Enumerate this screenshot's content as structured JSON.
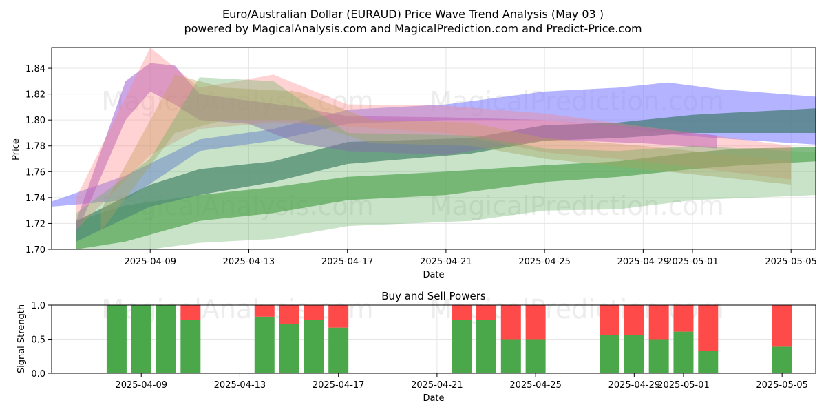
{
  "title_line1": "Euro/Australian Dollar (EURAUD) Price Wave Trend Analysis (May 03 )",
  "title_line2": "powered by MagicalAnalysis.com and MagicalPrediction.com and Predict-Price.com",
  "watermarks": [
    "MagicalAnalysis.com",
    "MagicalPrediction.com"
  ],
  "chart_data": [
    {
      "type": "area",
      "xlabel": "Date",
      "ylabel": "Price",
      "ylim": [
        1.7,
        1.856
      ],
      "xlim": [
        "2025-04-05",
        "2025-05-06"
      ],
      "grid": true,
      "x_ticks": [
        "2025-04-09",
        "2025-04-13",
        "2025-04-17",
        "2025-04-21",
        "2025-04-25",
        "2025-04-29",
        "2025-05-01",
        "2025-05-05"
      ],
      "y_ticks": [
        1.7,
        1.72,
        1.74,
        1.76,
        1.78,
        1.8,
        1.82,
        1.84
      ],
      "series": [
        {
          "color": "#8080ff",
          "alpha": 0.6,
          "x": [
            "2025-04-05",
            "2025-04-08",
            "2025-04-11",
            "2025-04-14",
            "2025-04-17",
            "2025-04-21",
            "2025-04-25",
            "2025-04-28",
            "2025-04-30",
            "2025-05-02",
            "2025-05-06"
          ],
          "upper": [
            1.737,
            1.757,
            1.785,
            1.793,
            1.808,
            1.812,
            1.822,
            1.825,
            1.829,
            1.824,
            1.818
          ],
          "lower": [
            1.733,
            1.738,
            1.776,
            1.784,
            1.797,
            1.8,
            1.8,
            1.795,
            1.789,
            1.786,
            1.781
          ]
        },
        {
          "color": "#2f8f2f",
          "alpha": 0.6,
          "x": [
            "2025-04-06",
            "2025-04-08",
            "2025-04-11",
            "2025-04-14",
            "2025-04-17",
            "2025-04-21",
            "2025-04-25",
            "2025-04-28",
            "2025-05-01",
            "2025-05-03",
            "2025-05-06"
          ],
          "upper": [
            1.722,
            1.734,
            1.742,
            1.748,
            1.756,
            1.76,
            1.765,
            1.768,
            1.775,
            1.778,
            1.779
          ],
          "lower": [
            1.7,
            1.706,
            1.722,
            1.728,
            1.738,
            1.742,
            1.752,
            1.756,
            1.762,
            1.765,
            1.768
          ]
        },
        {
          "color": "#4d8080",
          "alpha": 0.8,
          "x": [
            "2025-04-06",
            "2025-04-09",
            "2025-04-11",
            "2025-04-14",
            "2025-04-17",
            "2025-04-22",
            "2025-04-25",
            "2025-04-28",
            "2025-05-01",
            "2025-05-03",
            "2025-05-06"
          ],
          "upper": [
            1.722,
            1.75,
            1.762,
            1.768,
            1.783,
            1.786,
            1.796,
            1.798,
            1.804,
            1.806,
            1.809
          ],
          "lower": [
            1.706,
            1.733,
            1.742,
            1.752,
            1.766,
            1.774,
            1.784,
            1.786,
            1.79,
            1.79,
            1.79
          ]
        },
        {
          "color": "#9a4fcf",
          "alpha": 0.5,
          "x": [
            "2025-04-06",
            "2025-04-08",
            "2025-04-09",
            "2025-04-10",
            "2025-04-11",
            "2025-04-13",
            "2025-04-15",
            "2025-04-17",
            "2025-04-21",
            "2025-04-25",
            "2025-04-29",
            "2025-05-02"
          ],
          "upper": [
            1.722,
            1.83,
            1.844,
            1.842,
            1.82,
            1.815,
            1.81,
            1.803,
            1.802,
            1.8,
            1.794,
            1.788
          ],
          "lower": [
            1.712,
            1.8,
            1.822,
            1.812,
            1.8,
            1.797,
            1.782,
            1.776,
            1.773,
            1.785,
            1.782,
            1.778
          ]
        },
        {
          "color": "#ff8080",
          "alpha": 0.35,
          "x": [
            "2025-04-06",
            "2025-04-09",
            "2025-04-11",
            "2025-04-14",
            "2025-04-17",
            "2025-04-21",
            "2025-04-25",
            "2025-04-29",
            "2025-05-05"
          ],
          "upper": [
            1.74,
            1.856,
            1.825,
            1.835,
            1.812,
            1.811,
            1.805,
            1.795,
            1.78
          ],
          "lower": [
            1.715,
            1.773,
            1.793,
            1.798,
            1.795,
            1.79,
            1.775,
            1.768,
            1.754
          ]
        },
        {
          "color": "#c89a60",
          "alpha": 0.4,
          "x": [
            "2025-04-07",
            "2025-04-10",
            "2025-04-12",
            "2025-04-15",
            "2025-04-18",
            "2025-04-22",
            "2025-04-25",
            "2025-04-29",
            "2025-05-05"
          ],
          "upper": [
            1.73,
            1.835,
            1.825,
            1.822,
            1.8,
            1.798,
            1.786,
            1.78,
            1.768
          ],
          "lower": [
            1.714,
            1.79,
            1.8,
            1.8,
            1.782,
            1.78,
            1.77,
            1.762,
            1.75
          ]
        },
        {
          "color": "#60b060",
          "alpha": 0.35,
          "x": [
            "2025-04-06",
            "2025-04-09",
            "2025-04-11",
            "2025-04-14",
            "2025-04-17",
            "2025-04-22",
            "2025-04-25",
            "2025-04-28",
            "2025-05-01",
            "2025-05-06"
          ],
          "upper": [
            1.728,
            1.77,
            1.833,
            1.83,
            1.79,
            1.788,
            1.778,
            1.776,
            1.78,
            1.775
          ],
          "lower": [
            1.69,
            1.7,
            1.705,
            1.708,
            1.718,
            1.722,
            1.73,
            1.731,
            1.738,
            1.742
          ]
        }
      ]
    },
    {
      "type": "bar",
      "title": "Buy and Sell Powers",
      "xlabel": "Date",
      "ylabel": "Signal Strength",
      "ylim": [
        0,
        1.0
      ],
      "y_ticks": [
        "0.0",
        "0.5",
        "1.0"
      ],
      "x_ticks": [
        "2025-04-09",
        "2025-04-13",
        "2025-04-17",
        "2025-04-21",
        "2025-04-25",
        "2025-04-29",
        "2025-05-01",
        "2025-05-05"
      ],
      "buy_color": "#4aa84a",
      "sell_color": "#ff4a4a",
      "dates": [
        "2025-04-08",
        "2025-04-09",
        "2025-04-10",
        "2025-04-11",
        "2025-04-14",
        "2025-04-15",
        "2025-04-16",
        "2025-04-17",
        "2025-04-22",
        "2025-04-23",
        "2025-04-24",
        "2025-04-25",
        "2025-04-28",
        "2025-04-29",
        "2025-04-30",
        "2025-05-01",
        "2025-05-02",
        "2025-05-05"
      ],
      "buy": [
        1.0,
        1.0,
        1.0,
        0.78,
        0.83,
        0.72,
        0.78,
        0.67,
        0.78,
        0.78,
        0.5,
        0.5,
        0.56,
        0.56,
        0.5,
        0.61,
        0.33,
        0.39
      ]
    }
  ]
}
